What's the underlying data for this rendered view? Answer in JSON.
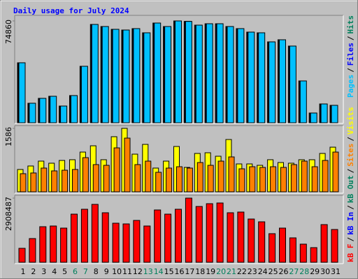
{
  "title": "Daily usage for July 2024",
  "legend_separator": "/",
  "highlight_categories": [
    "6",
    "7",
    "13",
    "14",
    "20",
    "21",
    "27",
    "28"
  ],
  "highlight_color": "#00805c",
  "chart_data": [
    {
      "type": "bar",
      "ylim": [
        0,
        74860
      ],
      "yticks": [
        74860
      ],
      "series": [
        {
          "name": "Hits",
          "color": "#00805c",
          "values": [
            44100,
            14360,
            17950,
            19480,
            12300,
            20000,
            41530,
            72290,
            70760,
            68700,
            68190,
            69220,
            66140,
            73320,
            70760,
            74860,
            74500,
            71780,
            72800,
            72800,
            70760,
            69220,
            66650,
            66140,
            59470,
            61010,
            56400,
            30760,
            7180,
            13840,
            12820
          ]
        },
        {
          "name": "Files",
          "color": "#0000ff",
          "values": [
            44100,
            14360,
            17950,
            19480,
            12300,
            20000,
            41530,
            72290,
            70760,
            68700,
            68190,
            69220,
            66140,
            73320,
            70760,
            74860,
            74500,
            71780,
            72800,
            72800,
            70760,
            69220,
            66650,
            66140,
            59470,
            61010,
            56400,
            30760,
            7180,
            13840,
            12820
          ]
        },
        {
          "name": "Pages",
          "color": "#00c0ff",
          "values": [
            44100,
            14360,
            17950,
            19480,
            12300,
            20000,
            41530,
            72290,
            70760,
            68700,
            68190,
            69220,
            66140,
            73320,
            70760,
            74860,
            74500,
            71780,
            72800,
            72800,
            70760,
            69220,
            66650,
            66140,
            59470,
            61010,
            56400,
            30760,
            7180,
            13840,
            12820
          ]
        }
      ]
    },
    {
      "type": "bar",
      "ylim": [
        0,
        1586
      ],
      "yticks": [
        1586
      ],
      "series": [
        {
          "name": "Visits",
          "color": "#ffff00",
          "values": [
            558,
            645,
            767,
            715,
            784,
            802,
            993,
            1150,
            802,
            1377,
            1586,
            941,
            1185,
            593,
            767,
            1133,
            610,
            959,
            976,
            889,
            1307,
            697,
            697,
            662,
            802,
            732,
            715,
            802,
            802,
            959,
            1115
          ]
        },
        {
          "name": "Sites",
          "color": "#ff8000",
          "values": [
            453,
            471,
            593,
            523,
            540,
            558,
            854,
            680,
            662,
            1098,
            1342,
            680,
            767,
            488,
            593,
            627,
            593,
            732,
            662,
            767,
            872,
            575,
            627,
            610,
            627,
            610,
            680,
            767,
            627,
            784,
            993
          ]
        }
      ]
    },
    {
      "type": "bar",
      "ylim": [
        0,
        2908487
      ],
      "yticks": [
        2908487
      ],
      "categories": [
        "1",
        "2",
        "3",
        "4",
        "5",
        "6",
        "7",
        "8",
        "9",
        "10",
        "11",
        "12",
        "13",
        "14",
        "15",
        "16",
        "17",
        "18",
        "19",
        "20",
        "21",
        "22",
        "23",
        "24",
        "25",
        "26",
        "27",
        "28",
        "29",
        "30",
        "31"
      ],
      "series": [
        {
          "name": "kB F",
          "color": "#ff0000",
          "values": [
            632280,
            1074880,
            1612310,
            1643930,
            1549090,
            2181370,
            2402660,
            2623960,
            2244590,
            1770380,
            1738770,
            1896840,
            1643930,
            2371050,
            2181370,
            2402660,
            2908487,
            2529120,
            2655580,
            2687190,
            2244590,
            2276210,
            1960070,
            1833610,
            1296170,
            1549090,
            1106490,
            821960,
            663890,
            1707160,
            1485860
          ]
        }
      ],
      "extra_legend": [
        {
          "name": "kB In",
          "color": "#0000ff"
        },
        {
          "name": "kB Out",
          "color": "#00805c"
        }
      ]
    }
  ]
}
